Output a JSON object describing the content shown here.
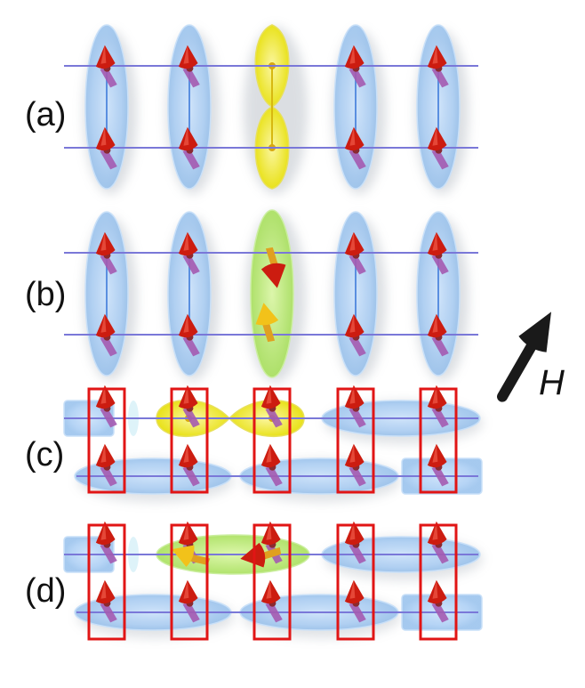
{
  "panel_labels": [
    "(a)",
    "(b)",
    "(c)",
    "(d)"
  ],
  "field_label": "H",
  "colors": {
    "bond_line": "#7a78d8",
    "singlet_bond": "#9cc6f2",
    "excitation_yellow": "#f2ee3a",
    "excitation_green": "#b9ec6e",
    "spin_arrow": "#cc1c10",
    "spin_shaft": "#a45ab0",
    "rung_box": "#e11515",
    "field_arrow": "#1a1a1a"
  },
  "icons": [
    "spin-arrow-icon",
    "field-arrow-icon"
  ]
}
